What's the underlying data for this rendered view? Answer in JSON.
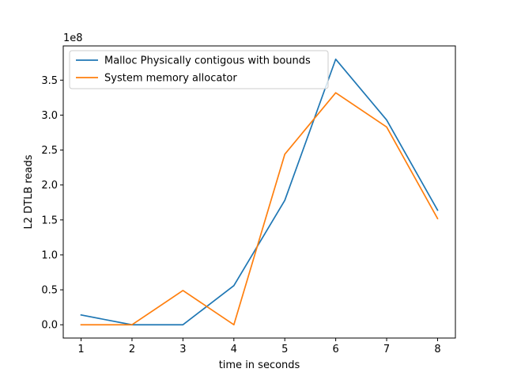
{
  "chart_data": {
    "type": "line",
    "title": "",
    "xlabel": "time in seconds",
    "ylabel": "L2 DTLB reads",
    "y_offset_label": "1e8",
    "x": [
      1,
      2,
      3,
      4,
      5,
      6,
      7,
      8
    ],
    "xlim": [
      0.65,
      8.35
    ],
    "ylim": [
      -0.19,
      3.99
    ],
    "y_scale_note": "values in units of 1e8",
    "xticks": [
      1,
      2,
      3,
      4,
      5,
      6,
      7,
      8
    ],
    "xtick_labels": [
      "1",
      "2",
      "3",
      "4",
      "5",
      "6",
      "7",
      "8"
    ],
    "yticks": [
      0.0,
      0.5,
      1.0,
      1.5,
      2.0,
      2.5,
      3.0,
      3.5
    ],
    "ytick_labels": [
      "0.0",
      "0.5",
      "1.0",
      "1.5",
      "2.0",
      "2.5",
      "3.0",
      "3.5"
    ],
    "grid": false,
    "legend_position": "upper-left",
    "series": [
      {
        "name": "Malloc Physically contigous with bounds",
        "color": "#1f77b4",
        "values": [
          0.14,
          0.0,
          0.0,
          0.56,
          1.78,
          3.8,
          2.93,
          1.64
        ]
      },
      {
        "name": "System memory allocator",
        "color": "#ff7f0e",
        "values": [
          0.0,
          0.0,
          0.49,
          0.0,
          2.44,
          3.32,
          2.83,
          1.52
        ]
      }
    ]
  }
}
